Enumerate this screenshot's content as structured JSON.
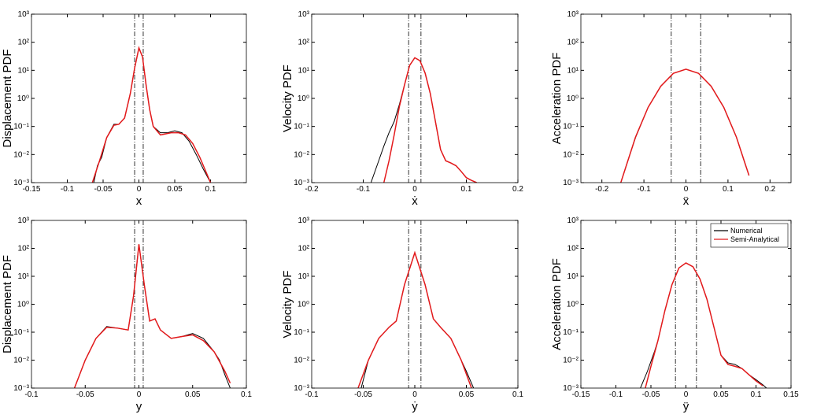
{
  "chart_data": [
    {
      "type": "line",
      "ylabel": "Displacement PDF",
      "xlabel": "x",
      "log_y": true,
      "xlim": [
        -0.15,
        0.15
      ],
      "xticks": [
        -0.15,
        -0.1,
        -0.05,
        0,
        0.05,
        0.1
      ],
      "ylim": [
        0.001,
        1000
      ],
      "yticks": [
        {
          "value": 0.001,
          "label": "10⁻³"
        },
        {
          "value": 0.01,
          "label": "10⁻²"
        },
        {
          "value": 0.1,
          "label": "10⁻¹"
        },
        {
          "value": 1,
          "label": "10⁰"
        },
        {
          "value": 10,
          "label": "10¹"
        },
        {
          "value": 100,
          "label": "10²"
        },
        {
          "value": 1000,
          "label": "10³"
        }
      ],
      "vlines": [
        -0.006,
        0.006
      ],
      "vline_color": "#000000",
      "series": [
        {
          "name": "Numerical",
          "color": "#000000",
          "x": [
            -0.063,
            -0.058,
            -0.052,
            -0.045,
            -0.035,
            -0.028,
            -0.02,
            -0.012,
            -0.006,
            0,
            0.005,
            0.01,
            0.015,
            0.02,
            0.03,
            0.04,
            0.05,
            0.06,
            0.07,
            0.08,
            0.09,
            0.1
          ],
          "values": [
            0.001,
            0.004,
            0.008,
            0.04,
            0.12,
            0.12,
            0.2,
            1.5,
            12,
            63,
            30,
            3,
            0.4,
            0.1,
            0.06,
            0.06,
            0.07,
            0.06,
            0.03,
            0.01,
            0.003,
            0.001
          ]
        },
        {
          "name": "Semi-Analytical",
          "color": "#e41a1c",
          "x": [
            -0.065,
            -0.055,
            -0.045,
            -0.035,
            -0.028,
            -0.02,
            -0.012,
            -0.006,
            0,
            0.005,
            0.01,
            0.015,
            0.02,
            0.03,
            0.045,
            0.055,
            0.065,
            0.075,
            0.085,
            0.095,
            0.1
          ],
          "values": [
            0.001,
            0.006,
            0.04,
            0.11,
            0.12,
            0.2,
            1.5,
            12,
            63,
            30,
            3,
            0.4,
            0.1,
            0.05,
            0.06,
            0.06,
            0.05,
            0.025,
            0.008,
            0.002,
            0.001
          ]
        }
      ]
    },
    {
      "type": "line",
      "ylabel": "Velocity PDF",
      "xlabel": "ẋ",
      "log_y": true,
      "xlim": [
        -0.2,
        0.2
      ],
      "xticks": [
        -0.2,
        -0.1,
        0,
        0.1,
        0.2
      ],
      "ylim": [
        0.001,
        1000
      ],
      "yticks": [
        {
          "value": 0.001,
          "label": "10⁻³"
        },
        {
          "value": 0.01,
          "label": "10⁻²"
        },
        {
          "value": 0.1,
          "label": "10⁻¹"
        },
        {
          "value": 1,
          "label": "10⁰"
        },
        {
          "value": 10,
          "label": "10¹"
        },
        {
          "value": 100,
          "label": "10²"
        },
        {
          "value": 1000,
          "label": "10³"
        }
      ],
      "vlines": [
        -0.012,
        0.012
      ],
      "vline_color": "#000000",
      "series": [
        {
          "name": "Numerical",
          "color": "#000000",
          "x": [
            -0.085,
            -0.07,
            -0.06,
            -0.05,
            -0.04,
            -0.03,
            -0.02,
            -0.01,
            0,
            0.01,
            0.02,
            0.03,
            0.04,
            0.05,
            0.06,
            0.07,
            0.08,
            0.09,
            0.1,
            0.11,
            0.12
          ],
          "values": [
            0.001,
            0.006,
            0.02,
            0.06,
            0.15,
            0.6,
            3,
            15,
            28,
            22,
            8,
            1.5,
            0.15,
            0.015,
            0.006,
            0.005,
            0.004,
            0.0025,
            0.0015,
            0.0012,
            0.001
          ]
        },
        {
          "name": "Semi-Analytical",
          "color": "#e41a1c",
          "x": [
            -0.06,
            -0.05,
            -0.04,
            -0.03,
            -0.02,
            -0.01,
            0,
            0.01,
            0.02,
            0.03,
            0.04,
            0.05,
            0.06,
            0.07,
            0.08,
            0.09,
            0.1,
            0.11,
            0.12
          ],
          "values": [
            0.001,
            0.006,
            0.05,
            0.5,
            3,
            15,
            28,
            22,
            8,
            1.5,
            0.15,
            0.015,
            0.006,
            0.005,
            0.004,
            0.0025,
            0.0015,
            0.0012,
            0.001
          ]
        }
      ]
    },
    {
      "type": "line",
      "ylabel": "Acceleration PDF",
      "xlabel": "ẍ",
      "log_y": true,
      "xlim": [
        -0.25,
        0.25
      ],
      "xticks": [
        -0.2,
        -0.1,
        0,
        0.1,
        0.2
      ],
      "ylim": [
        0.001,
        1000
      ],
      "yticks": [
        {
          "value": 0.001,
          "label": "10⁻³"
        },
        {
          "value": 0.01,
          "label": "10⁻²"
        },
        {
          "value": 0.1,
          "label": "10⁻¹"
        },
        {
          "value": 1,
          "label": "10⁰"
        },
        {
          "value": 10,
          "label": "10¹"
        },
        {
          "value": 100,
          "label": "10²"
        },
        {
          "value": 1000,
          "label": "10³"
        }
      ],
      "vlines": [
        -0.035,
        0.035
      ],
      "vline_color": "#000000",
      "series": [
        {
          "name": "Numerical",
          "color": "#000000",
          "x": [
            -0.155,
            -0.14,
            -0.12,
            -0.09,
            -0.06,
            -0.03,
            0,
            0.03,
            0.06,
            0.09,
            0.12,
            0.14,
            0.15
          ],
          "values": [
            0.001,
            0.005,
            0.04,
            0.48,
            2.7,
            7.8,
            11,
            7.8,
            2.7,
            0.48,
            0.042,
            0.005,
            0.0018
          ]
        },
        {
          "name": "Semi-Analytical",
          "color": "#e41a1c",
          "x": [
            -0.155,
            -0.12,
            -0.09,
            -0.06,
            -0.03,
            0,
            0.03,
            0.06,
            0.09,
            0.12,
            0.15
          ],
          "values": [
            0.001,
            0.042,
            0.48,
            2.7,
            7.8,
            11,
            7.8,
            2.7,
            0.48,
            0.042,
            0.0018
          ]
        }
      ]
    },
    {
      "type": "line",
      "ylabel": "Displacement PDF",
      "xlabel": "y",
      "log_y": true,
      "xlim": [
        -0.1,
        0.1
      ],
      "xticks": [
        -0.1,
        -0.05,
        0,
        0.05,
        0.1
      ],
      "ylim": [
        0.001,
        1000
      ],
      "yticks": [
        {
          "value": 0.001,
          "label": "10⁻³"
        },
        {
          "value": 0.01,
          "label": "10⁻²"
        },
        {
          "value": 0.1,
          "label": "10⁻¹"
        },
        {
          "value": 1,
          "label": "10⁰"
        },
        {
          "value": 10,
          "label": "10¹"
        },
        {
          "value": 100,
          "label": "10²"
        },
        {
          "value": 1000,
          "label": "10³"
        }
      ],
      "vlines": [
        -0.004,
        0.004
      ],
      "vline_color": "#000000",
      "series": [
        {
          "name": "Numerical",
          "color": "#000000",
          "x": [
            -0.06,
            -0.05,
            -0.04,
            -0.03,
            -0.02,
            -0.01,
            -0.005,
            0,
            0.005,
            0.01,
            0.015,
            0.02,
            0.03,
            0.04,
            0.05,
            0.06,
            0.07,
            0.075,
            0.08,
            0.085
          ],
          "values": [
            0.001,
            0.01,
            0.06,
            0.16,
            0.14,
            0.12,
            2,
            140,
            5,
            0.25,
            0.3,
            0.12,
            0.06,
            0.07,
            0.09,
            0.06,
            0.02,
            0.01,
            0.003,
            0.001
          ]
        },
        {
          "name": "Semi-Analytical",
          "color": "#e41a1c",
          "x": [
            -0.06,
            -0.05,
            -0.04,
            -0.03,
            -0.02,
            -0.01,
            -0.005,
            0,
            0.005,
            0.01,
            0.015,
            0.02,
            0.03,
            0.04,
            0.05,
            0.06,
            0.07,
            0.08,
            0.085
          ],
          "values": [
            0.001,
            0.01,
            0.06,
            0.15,
            0.14,
            0.12,
            2,
            140,
            5,
            0.25,
            0.3,
            0.12,
            0.06,
            0.07,
            0.08,
            0.05,
            0.02,
            0.004,
            0.0015
          ]
        }
      ]
    },
    {
      "type": "line",
      "ylabel": "Velocity PDF",
      "xlabel": "ẏ",
      "log_y": true,
      "xlim": [
        -0.1,
        0.1
      ],
      "xticks": [
        -0.1,
        -0.05,
        0,
        0.05,
        0.1
      ],
      "ylim": [
        0.001,
        1000
      ],
      "yticks": [
        {
          "value": 0.001,
          "label": "10⁻³"
        },
        {
          "value": 0.01,
          "label": "10⁻²"
        },
        {
          "value": 0.1,
          "label": "10⁻¹"
        },
        {
          "value": 1,
          "label": "10⁰"
        },
        {
          "value": 10,
          "label": "10¹"
        },
        {
          "value": 100,
          "label": "10²"
        },
        {
          "value": 1000,
          "label": "10³"
        }
      ],
      "vlines": [
        -0.006,
        0.006
      ],
      "vline_color": "#000000",
      "series": [
        {
          "name": "Numerical",
          "color": "#000000",
          "x": [
            -0.052,
            -0.045,
            -0.035,
            -0.025,
            -0.018,
            -0.01,
            0,
            0.01,
            0.018,
            0.025,
            0.035,
            0.045,
            0.05,
            0.057
          ],
          "values": [
            0.001,
            0.01,
            0.06,
            0.15,
            0.25,
            5,
            70,
            5,
            0.3,
            0.15,
            0.06,
            0.01,
            0.004,
            0.001
          ]
        },
        {
          "name": "Semi-Analytical",
          "color": "#e41a1c",
          "x": [
            -0.055,
            -0.045,
            -0.035,
            -0.025,
            -0.018,
            -0.01,
            0,
            0.01,
            0.018,
            0.025,
            0.035,
            0.045,
            0.055
          ],
          "values": [
            0.001,
            0.01,
            0.06,
            0.15,
            0.25,
            5,
            70,
            5,
            0.3,
            0.15,
            0.06,
            0.01,
            0.001
          ]
        }
      ]
    },
    {
      "type": "line",
      "ylabel": "Acceleration PDF",
      "xlabel": "ÿ",
      "log_y": true,
      "legend": "upper right",
      "xlim": [
        -0.15,
        0.15
      ],
      "xticks": [
        -0.15,
        -0.1,
        -0.05,
        0,
        0.05,
        0.1,
        0.15
      ],
      "ylim": [
        0.001,
        1000
      ],
      "yticks": [
        {
          "value": 0.001,
          "label": "10⁻³"
        },
        {
          "value": 0.01,
          "label": "10⁻²"
        },
        {
          "value": 0.1,
          "label": "10⁻¹"
        },
        {
          "value": 1,
          "label": "10⁰"
        },
        {
          "value": 10,
          "label": "10¹"
        },
        {
          "value": 100,
          "label": "10²"
        },
        {
          "value": 1000,
          "label": "10³"
        }
      ],
      "vlines": [
        -0.015,
        0.015
      ],
      "vline_color": "#000000",
      "series": [
        {
          "name": "Numerical",
          "color": "#000000",
          "x": [
            -0.065,
            -0.055,
            -0.045,
            -0.04,
            -0.03,
            -0.02,
            -0.01,
            0,
            0.01,
            0.02,
            0.03,
            0.04,
            0.05,
            0.06,
            0.07,
            0.08,
            0.09,
            0.1,
            0.11,
            0.115
          ],
          "values": [
            0.001,
            0.004,
            0.02,
            0.05,
            0.6,
            5,
            20,
            30,
            22,
            8,
            1.5,
            0.15,
            0.015,
            0.008,
            0.007,
            0.005,
            0.003,
            0.002,
            0.0013,
            0.001
          ]
        },
        {
          "name": "Semi-Analytical",
          "color": "#e41a1c",
          "x": [
            -0.058,
            -0.05,
            -0.04,
            -0.03,
            -0.02,
            -0.01,
            0,
            0.01,
            0.02,
            0.03,
            0.04,
            0.05,
            0.06,
            0.07,
            0.08,
            0.09,
            0.1,
            0.11
          ],
          "values": [
            0.001,
            0.006,
            0.05,
            0.6,
            5,
            20,
            30,
            22,
            8,
            1.5,
            0.15,
            0.015,
            0.007,
            0.006,
            0.005,
            0.003,
            0.0018,
            0.0012
          ]
        }
      ]
    }
  ]
}
